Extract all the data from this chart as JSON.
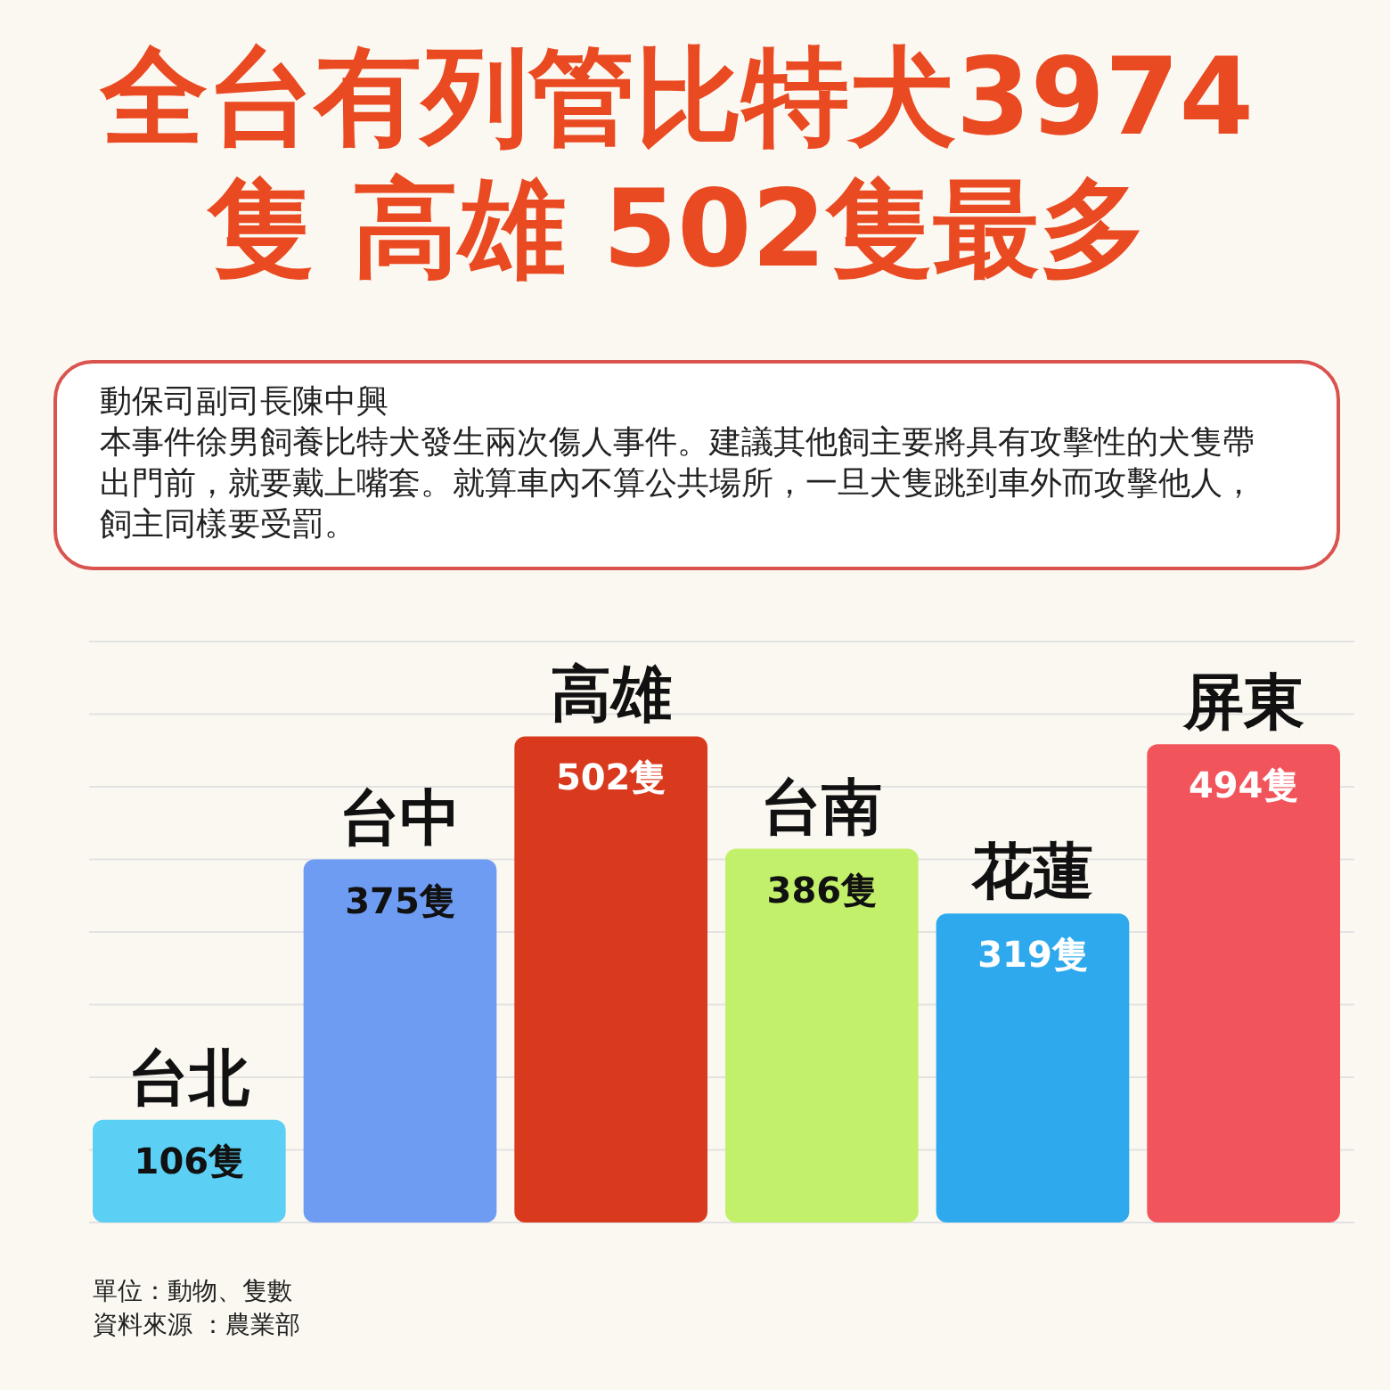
{
  "chart_data": {
    "type": "bar",
    "title": "全台有列管比特犬3974隻 高雄 502隻最多",
    "categories": [
      "台北",
      "台中",
      "高雄",
      "台南",
      "花蓮",
      "屏東"
    ],
    "values": [
      106,
      375,
      502,
      386,
      319,
      494
    ],
    "colors": [
      "#5ccff4",
      "#6f9cf3",
      "#d93a1e",
      "#c3f06a",
      "#2fa9ee",
      "#f2545b"
    ],
    "value_labels": [
      "106隻",
      "375隻",
      "502隻",
      "386隻",
      "319隻",
      "494隻"
    ],
    "ylim": [
      0,
      600
    ],
    "yticks": [
      {
        "value": 0,
        "label": null
      },
      {
        "value": 75,
        "label": null
      },
      {
        "value": 150,
        "label": null
      },
      {
        "value": 225,
        "label": null
      },
      {
        "value": 300,
        "label": null
      },
      {
        "value": 375,
        "label": null
      },
      {
        "value": 450,
        "label": null
      },
      {
        "value": 525,
        "label": null
      },
      {
        "value": 600,
        "label": null
      }
    ],
    "grid": "y",
    "annotations": [
      "動保司副司長陳中興",
      "本事件徐男飼養比特犬發生兩次傷人事件。建議其他飼主要將具有攻擊性的犬隻帶出門前，就要戴上嘴套。就算車內不算公共場所，一旦犬隻跳到車外而攻擊他人，飼主同樣要受罰。",
      "單位：動物、隻數",
      "資料來源 ：農業部"
    ]
  }
}
